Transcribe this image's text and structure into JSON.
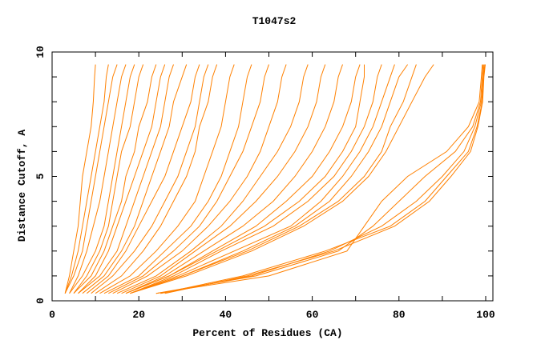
{
  "chart_data": {
    "type": "line",
    "title": "T1047s2",
    "xlabel": "Percent of Residues (CA)",
    "ylabel": "Distance Cutoff, A",
    "xlim": [
      0,
      100
    ],
    "ylim": [
      0,
      10
    ],
    "xticks": [
      "0",
      "20",
      "40",
      "60",
      "80",
      "100"
    ],
    "yticks": [
      "0",
      "5",
      "10"
    ],
    "grid": false,
    "legend": "none",
    "line_color": "#ff8000",
    "y_cutoffs": [
      0.3,
      1,
      2,
      3,
      4,
      5,
      6,
      7,
      8,
      9,
      9.5
    ],
    "series": [
      {
        "x": [
          3,
          4,
          5,
          6,
          6.5,
          7,
          8,
          9,
          9.5,
          9.8,
          10
        ]
      },
      {
        "x": [
          3,
          4.5,
          6,
          7,
          8,
          9,
          10,
          11,
          12,
          12.5,
          13
        ]
      },
      {
        "x": [
          3,
          5,
          7,
          8,
          9,
          10,
          11,
          12,
          13,
          14,
          15
        ]
      },
      {
        "x": [
          4,
          6,
          8,
          9.5,
          11,
          12,
          13,
          14,
          15,
          16,
          17
        ]
      },
      {
        "x": [
          4,
          7,
          10,
          12,
          13,
          14,
          15,
          16,
          17,
          18,
          19
        ]
      },
      {
        "x": [
          5,
          8,
          11,
          13,
          14,
          15,
          16,
          18,
          19,
          20,
          21
        ]
      },
      {
        "x": [
          5,
          9,
          12,
          14,
          16,
          17,
          19,
          20,
          22,
          23,
          24
        ]
      },
      {
        "x": [
          6,
          10,
          13,
          15,
          17,
          19,
          21,
          23,
          24,
          25,
          26
        ]
      },
      {
        "x": [
          6,
          11,
          15,
          17,
          19,
          21,
          23,
          25,
          26,
          27,
          28
        ]
      },
      {
        "x": [
          7,
          12,
          16,
          19,
          21,
          23,
          25,
          27,
          28,
          30,
          31
        ]
      },
      {
        "x": [
          8,
          13,
          17,
          20,
          23,
          26,
          28,
          30,
          32,
          33,
          34
        ]
      },
      {
        "x": [
          9,
          14,
          19,
          23,
          26,
          29,
          31,
          33,
          34,
          35,
          36
        ]
      },
      {
        "x": [
          10,
          16,
          21,
          25,
          28,
          31,
          33,
          34,
          36,
          37,
          38
        ]
      },
      {
        "x": [
          11,
          18,
          24,
          29,
          33,
          35,
          37,
          39,
          40,
          41,
          42
        ]
      },
      {
        "x": [
          12,
          20,
          26,
          32,
          36,
          39,
          41,
          43,
          44,
          45,
          46
        ]
      },
      {
        "x": [
          13,
          21,
          28,
          34,
          38,
          41,
          44,
          46,
          48,
          49,
          50
        ]
      },
      {
        "x": [
          14,
          22,
          30,
          36,
          41,
          45,
          48,
          50,
          52,
          53,
          54
        ]
      },
      {
        "x": [
          15,
          24,
          32,
          39,
          44,
          48,
          52,
          55,
          57,
          58,
          59
        ]
      },
      {
        "x": [
          16,
          25,
          33,
          41,
          47,
          52,
          56,
          59,
          61,
          62,
          63
        ]
      },
      {
        "x": [
          17,
          26,
          35,
          44,
          51,
          56,
          60,
          63,
          65,
          66,
          67
        ]
      },
      {
        "x": [
          17,
          27,
          37,
          47,
          54,
          60,
          64,
          67,
          69,
          70,
          71
        ]
      },
      {
        "x": [
          17,
          27,
          38,
          49,
          57,
          63,
          67,
          70,
          71,
          72,
          72
        ]
      },
      {
        "x": [
          18,
          28,
          39,
          51,
          59,
          65,
          69,
          72,
          74,
          75,
          76
        ]
      },
      {
        "x": [
          18,
          29,
          42,
          55,
          62,
          67,
          71,
          74,
          76,
          78,
          79
        ]
      },
      {
        "x": [
          18,
          30,
          44,
          56,
          64,
          69,
          73,
          76,
          78,
          80,
          82
        ]
      },
      {
        "x": [
          18,
          30,
          45,
          57,
          66,
          72,
          76,
          78,
          81,
          83,
          84
        ]
      },
      {
        "x": [
          18,
          31,
          46,
          58,
          67,
          73,
          77,
          80,
          83,
          86,
          88
        ]
      },
      {
        "x": [
          24,
          50,
          68,
          72,
          76,
          82,
          91,
          96,
          98.5,
          99,
          99.2
        ]
      },
      {
        "x": [
          24,
          47,
          66,
          74,
          80,
          86,
          93,
          97,
          98.8,
          99.2,
          99.4
        ]
      },
      {
        "x": [
          25,
          46,
          64,
          76,
          84,
          90,
          95,
          97.5,
          99,
          99.4,
          99.6
        ]
      },
      {
        "x": [
          25,
          44,
          63,
          78,
          86,
          91,
          96,
          98,
          99.2,
          99.5,
          99.8
        ]
      },
      {
        "x": [
          26,
          45,
          65,
          79,
          87,
          92,
          96.5,
          98.2,
          99.3,
          99.6,
          99.9
        ]
      }
    ]
  }
}
